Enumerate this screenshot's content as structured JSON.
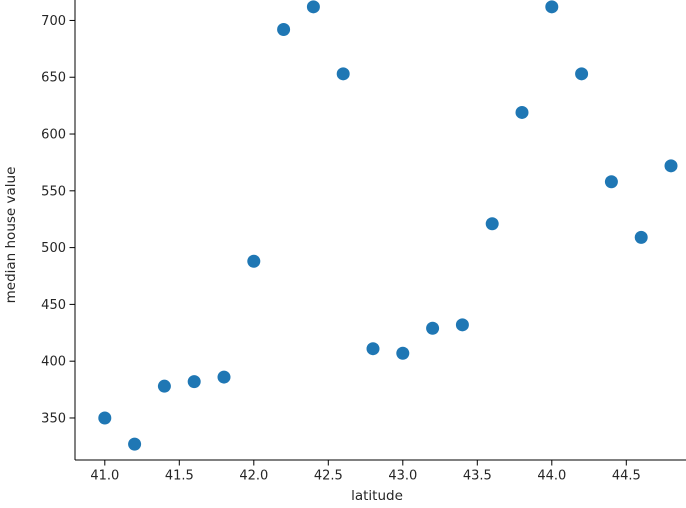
{
  "chart_data": {
    "type": "scatter",
    "title": "",
    "xlabel": "latitude",
    "ylabel": "median house value",
    "x": [
      41.0,
      41.2,
      41.4,
      41.6,
      41.8,
      42.0,
      42.2,
      42.4,
      42.6,
      42.8,
      43.0,
      43.2,
      43.4,
      43.6,
      43.8,
      44.0,
      44.2,
      44.4,
      44.6,
      44.8
    ],
    "y": [
      350,
      327,
      378,
      382,
      386,
      488,
      692,
      712,
      653,
      411,
      407,
      429,
      432,
      521,
      619,
      712,
      653,
      558,
      509,
      572
    ],
    "x_ticks": [
      41.0,
      41.5,
      42.0,
      42.5,
      43.0,
      43.5,
      44.0,
      44.5
    ],
    "x_tick_labels": [
      "41.0",
      "41.5",
      "42.0",
      "42.5",
      "43.0",
      "43.5",
      "44.0",
      "44.5"
    ],
    "y_ticks": [
      350,
      400,
      450,
      500,
      550,
      600,
      650,
      700
    ],
    "y_tick_labels": [
      "350",
      "400",
      "450",
      "500",
      "550",
      "600",
      "650",
      "700"
    ],
    "xlim": [
      40.8,
      45.0
    ],
    "ylim": [
      313,
      718
    ],
    "grid": false,
    "legend_position": "none",
    "colors": {
      "marker": "#1f77b4",
      "spine": "#000000",
      "text": "#262626"
    }
  }
}
